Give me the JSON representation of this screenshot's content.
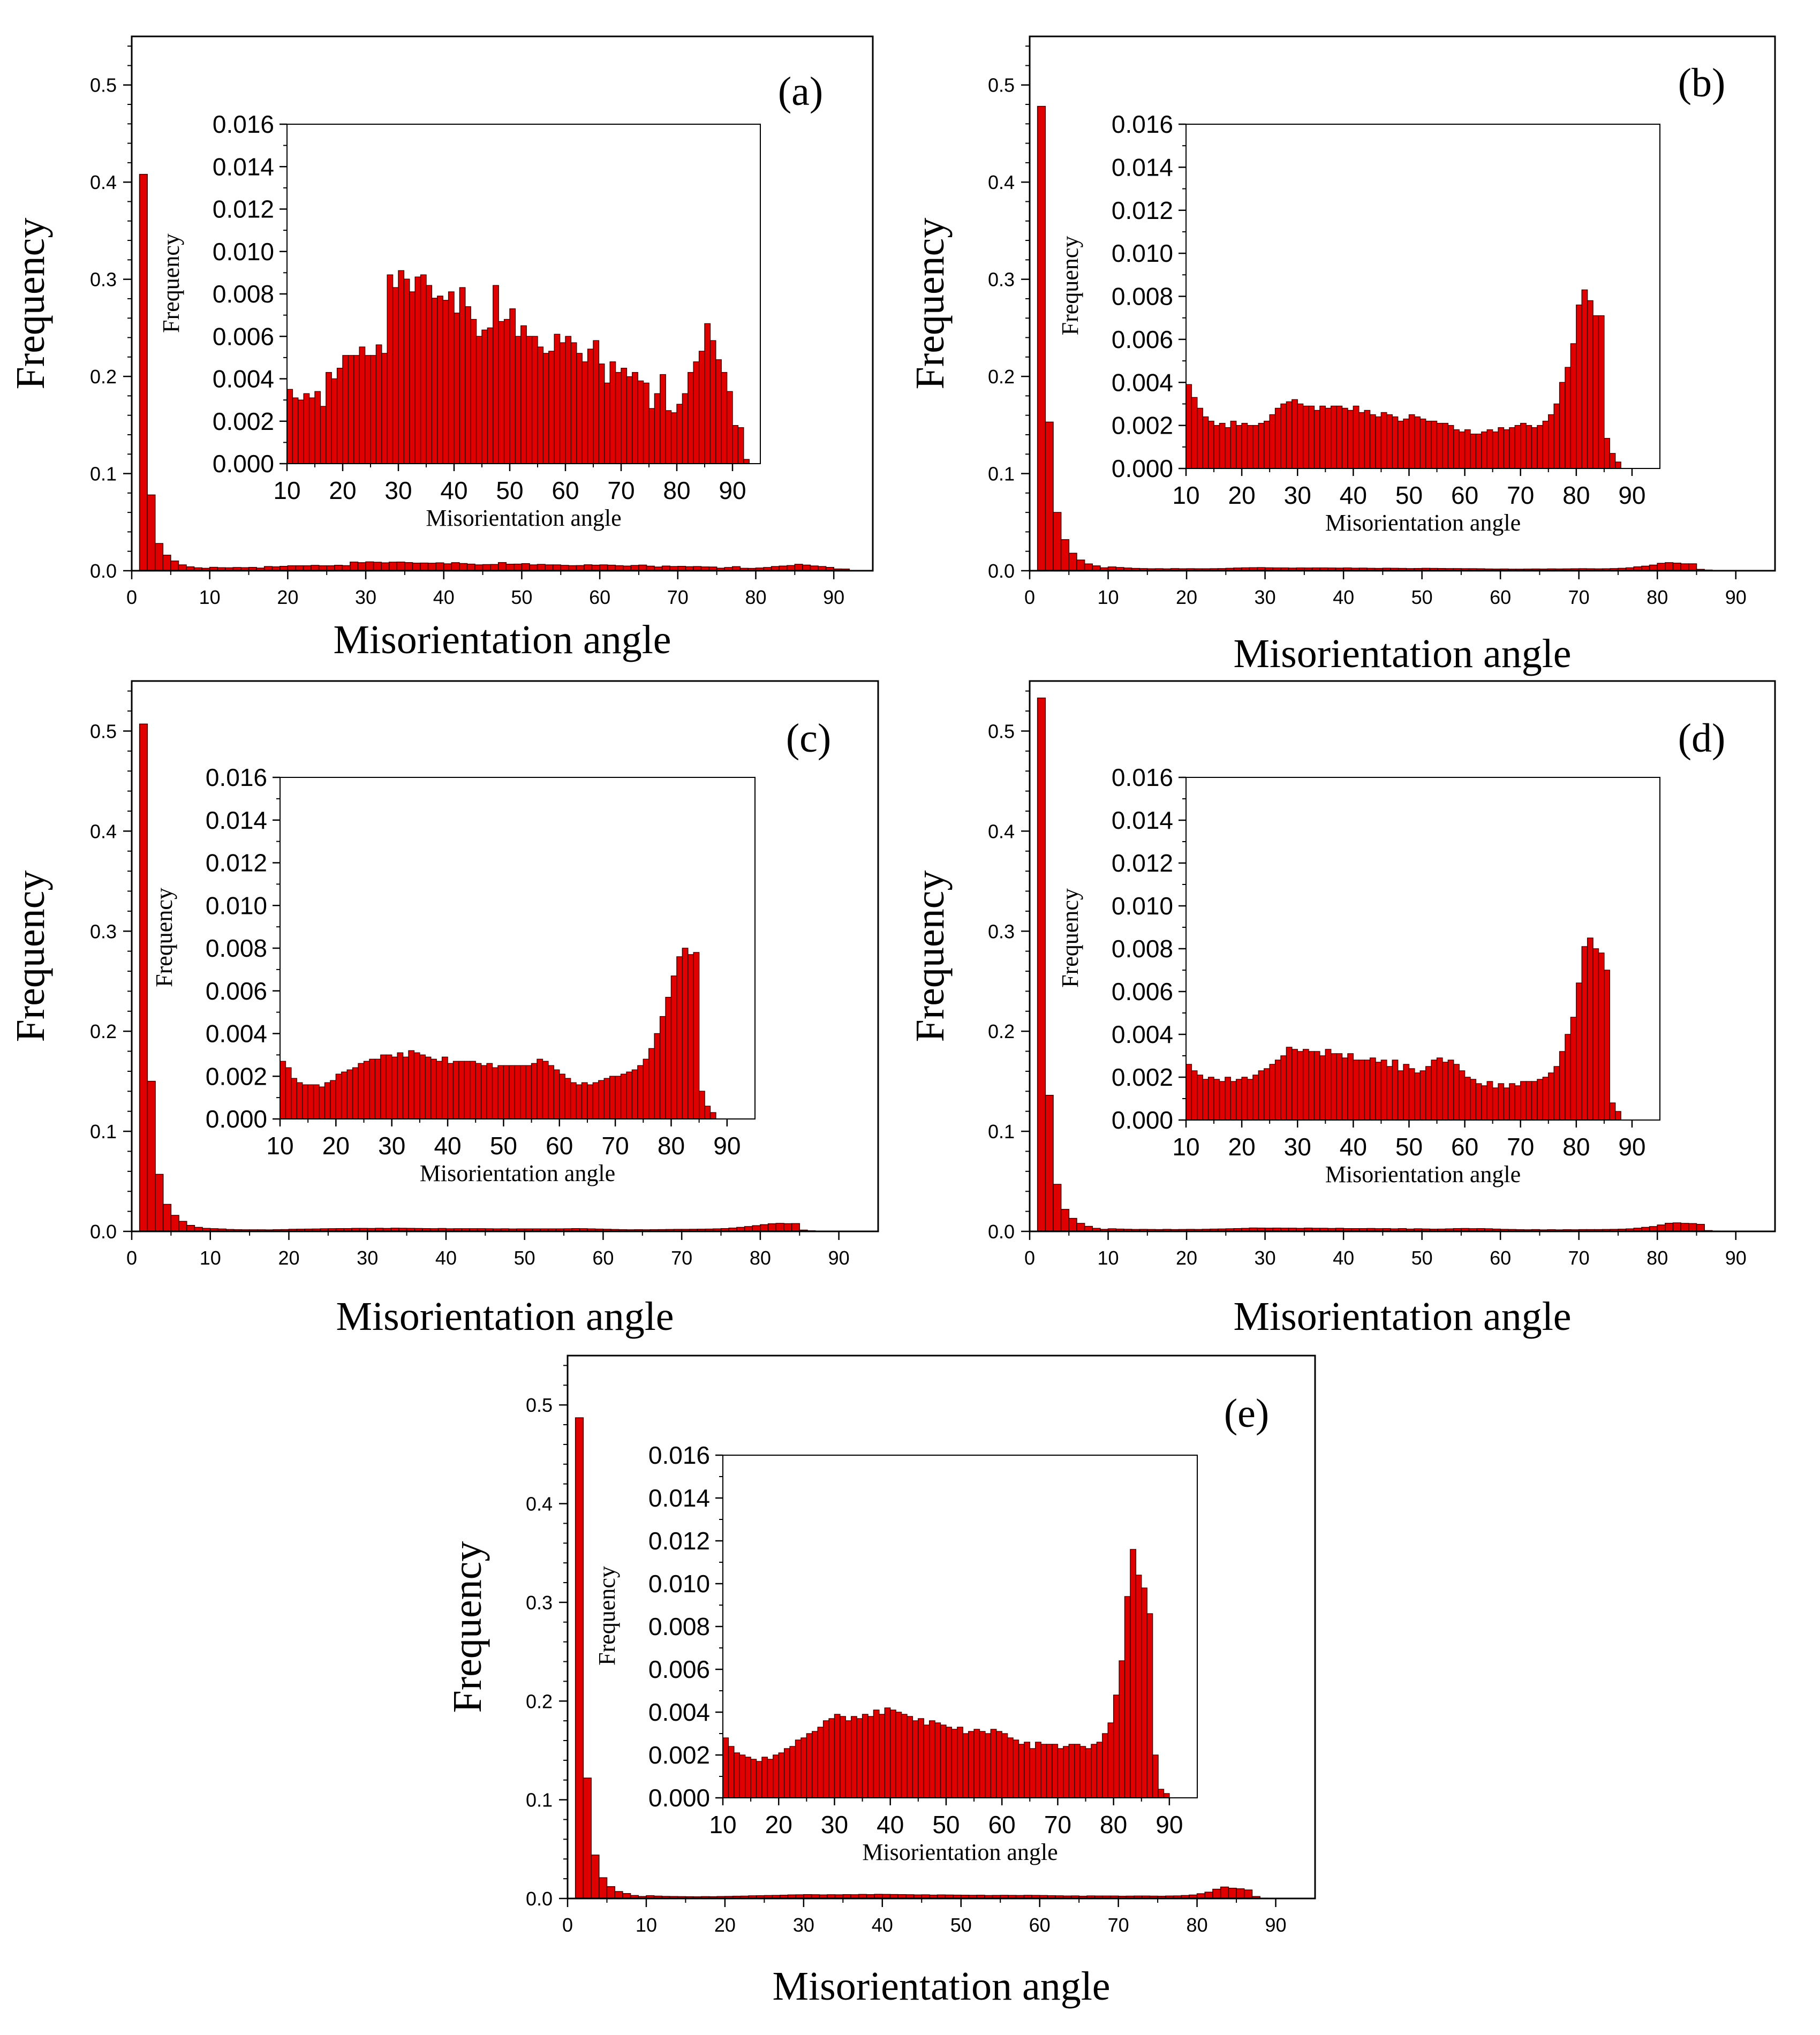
{
  "colors": {
    "bar_fill": "#e00000",
    "bar_stroke": "#3a0000",
    "axis": "#000000",
    "background": "#ffffff"
  },
  "chart_data": [
    {
      "panel": "(a)",
      "type": "bar",
      "xlabel": "Misorientation angle",
      "ylabel": "Frequency",
      "xlim": [
        0,
        95
      ],
      "ylim": [
        0,
        0.55
      ],
      "xticks": [
        "0",
        "10",
        "20",
        "30",
        "40",
        "50",
        "60",
        "70",
        "80",
        "90"
      ],
      "yticks": [
        "0.0",
        "0.1",
        "0.2",
        "0.3",
        "0.4",
        "0.5"
      ],
      "bin_width": 1,
      "bin_start": 1,
      "values": [
        0.408,
        0.078,
        0.028,
        0.016,
        0.01,
        0.006,
        0.004,
        0.003,
        0.0025,
        0.0035,
        0.0031,
        0.003,
        0.0033,
        0.0031,
        0.0034,
        0.0027,
        0.0043,
        0.004,
        0.0045,
        0.0051,
        0.0051,
        0.0051,
        0.0055,
        0.0051,
        0.0051,
        0.0056,
        0.0052,
        0.0089,
        0.0083,
        0.0091,
        0.0087,
        0.0081,
        0.0088,
        0.0089,
        0.0084,
        0.0078,
        0.0079,
        0.0077,
        0.0081,
        0.0071,
        0.0083,
        0.0074,
        0.0068,
        0.006,
        0.0063,
        0.0064,
        0.0084,
        0.0067,
        0.0068,
        0.0073,
        0.006,
        0.0065,
        0.006,
        0.006,
        0.0055,
        0.0052,
        0.0053,
        0.0061,
        0.0057,
        0.006,
        0.0057,
        0.0052,
        0.0048,
        0.0054,
        0.0058,
        0.0047,
        0.0038,
        0.0048,
        0.0043,
        0.0045,
        0.0041,
        0.0043,
        0.0039,
        0.0038,
        0.0026,
        0.0033,
        0.0042,
        0.0025,
        0.0024,
        0.0028,
        0.0033,
        0.0043,
        0.0048,
        0.0053,
        0.0066,
        0.0058,
        0.0049,
        0.0043,
        0.0034,
        0.0018,
        0.0017,
        0.0002
      ],
      "inset": {
        "xlabel": "Misorientation angle",
        "ylabel": "Frequency",
        "xlim": [
          10,
          95
        ],
        "ylim": [
          0,
          0.016
        ],
        "xticks": [
          "10",
          "20",
          "30",
          "40",
          "50",
          "60",
          "70",
          "80",
          "90"
        ],
        "yticks": [
          "0.000",
          "0.002",
          "0.004",
          "0.006",
          "0.008",
          "0.010",
          "0.012",
          "0.014",
          "0.016"
        ]
      }
    },
    {
      "panel": "(b)",
      "type": "bar",
      "xlabel": "Misorientation angle",
      "ylabel": "Frequency",
      "xlim": [
        0,
        95
      ],
      "ylim": [
        0,
        0.55
      ],
      "xticks": [
        "0",
        "10",
        "20",
        "30",
        "40",
        "50",
        "60",
        "70",
        "80",
        "90"
      ],
      "yticks": [
        "0.0",
        "0.1",
        "0.2",
        "0.3",
        "0.4",
        "0.5"
      ],
      "bin_width": 1,
      "bin_start": 1,
      "values": [
        0.478,
        0.153,
        0.06,
        0.032,
        0.018,
        0.011,
        0.007,
        0.005,
        0.003,
        0.0039,
        0.0033,
        0.0028,
        0.0024,
        0.0022,
        0.002,
        0.0021,
        0.0019,
        0.0022,
        0.002,
        0.0021,
        0.002,
        0.002,
        0.0021,
        0.0022,
        0.0025,
        0.0028,
        0.003,
        0.0031,
        0.0032,
        0.003,
        0.0029,
        0.0029,
        0.0027,
        0.0029,
        0.0028,
        0.0029,
        0.0029,
        0.0028,
        0.0027,
        0.0029,
        0.0026,
        0.0027,
        0.0025,
        0.0024,
        0.0026,
        0.0025,
        0.0024,
        0.0022,
        0.0023,
        0.0025,
        0.0024,
        0.0023,
        0.0022,
        0.0022,
        0.0021,
        0.0021,
        0.002,
        0.0018,
        0.0017,
        0.0018,
        0.0016,
        0.0016,
        0.0017,
        0.0018,
        0.0017,
        0.0019,
        0.0018,
        0.0019,
        0.002,
        0.0021,
        0.002,
        0.0019,
        0.002,
        0.0022,
        0.0025,
        0.003,
        0.004,
        0.0047,
        0.0058,
        0.0076,
        0.0083,
        0.0078,
        0.0071,
        0.0071,
        0.0014,
        0.0007,
        0.0003
      ],
      "inset": {
        "xlabel": "Misorientation angle",
        "ylabel": "Frequency",
        "xlim": [
          10,
          95
        ],
        "ylim": [
          0,
          0.016
        ],
        "xticks": [
          "10",
          "20",
          "30",
          "40",
          "50",
          "60",
          "70",
          "80",
          "90"
        ],
        "yticks": [
          "0.000",
          "0.002",
          "0.004",
          "0.006",
          "0.008",
          "0.010",
          "0.012",
          "0.014",
          "0.016"
        ]
      }
    },
    {
      "panel": "(c)",
      "type": "bar",
      "xlabel": "Misorientation angle",
      "ylabel": "Frequency",
      "xlim": [
        0,
        95
      ],
      "ylim": [
        0,
        0.55
      ],
      "xticks": [
        "0",
        "10",
        "20",
        "30",
        "40",
        "50",
        "60",
        "70",
        "80",
        "90"
      ],
      "yticks": [
        "0.0",
        "0.1",
        "0.2",
        "0.3",
        "0.4",
        "0.5"
      ],
      "bin_width": 1,
      "bin_start": 1,
      "values": [
        0.507,
        0.15,
        0.057,
        0.027,
        0.016,
        0.01,
        0.006,
        0.004,
        0.003,
        0.0027,
        0.0024,
        0.0019,
        0.0017,
        0.0016,
        0.0016,
        0.0016,
        0.0015,
        0.0017,
        0.0018,
        0.0021,
        0.0022,
        0.0023,
        0.0024,
        0.0026,
        0.0027,
        0.0028,
        0.0028,
        0.003,
        0.003,
        0.0029,
        0.0031,
        0.0029,
        0.0032,
        0.0031,
        0.003,
        0.0029,
        0.0028,
        0.0027,
        0.0029,
        0.0026,
        0.0027,
        0.0027,
        0.0027,
        0.0027,
        0.0026,
        0.0025,
        0.0026,
        0.0024,
        0.0025,
        0.0025,
        0.0025,
        0.0025,
        0.0025,
        0.0025,
        0.0026,
        0.0028,
        0.0027,
        0.0025,
        0.0023,
        0.0021,
        0.0019,
        0.0017,
        0.0016,
        0.0017,
        0.0016,
        0.0017,
        0.0018,
        0.0019,
        0.002,
        0.002,
        0.0021,
        0.0022,
        0.0023,
        0.0025,
        0.0028,
        0.0033,
        0.004,
        0.0048,
        0.0057,
        0.0067,
        0.0076,
        0.008,
        0.0077,
        0.0078,
        0.0013,
        0.0006,
        0.0003
      ],
      "inset": {
        "xlabel": "Misorientation angle",
        "ylabel": "Frequency",
        "xlim": [
          10,
          95
        ],
        "ylim": [
          0,
          0.016
        ],
        "xticks": [
          "10",
          "20",
          "30",
          "40",
          "50",
          "60",
          "70",
          "80",
          "90"
        ],
        "yticks": [
          "0.000",
          "0.002",
          "0.004",
          "0.006",
          "0.008",
          "0.010",
          "0.012",
          "0.014",
          "0.016"
        ]
      }
    },
    {
      "panel": "(d)",
      "type": "bar",
      "xlabel": "Misorientation angle",
      "ylabel": "Frequency",
      "xlim": [
        0,
        95
      ],
      "ylim": [
        0,
        0.55
      ],
      "xticks": [
        "0",
        "10",
        "20",
        "30",
        "40",
        "50",
        "60",
        "70",
        "80",
        "90"
      ],
      "yticks": [
        "0.0",
        "0.1",
        "0.2",
        "0.3",
        "0.4",
        "0.5"
      ],
      "bin_width": 1,
      "bin_start": 1,
      "values": [
        0.533,
        0.136,
        0.047,
        0.022,
        0.013,
        0.008,
        0.005,
        0.003,
        0.002,
        0.0026,
        0.0023,
        0.0021,
        0.0019,
        0.002,
        0.0019,
        0.0018,
        0.002,
        0.0018,
        0.0019,
        0.002,
        0.0019,
        0.0021,
        0.0023,
        0.0024,
        0.0026,
        0.0028,
        0.003,
        0.0034,
        0.0033,
        0.0032,
        0.0033,
        0.0032,
        0.0032,
        0.003,
        0.0033,
        0.0031,
        0.0031,
        0.0029,
        0.0031,
        0.0028,
        0.0028,
        0.0028,
        0.0029,
        0.0027,
        0.0028,
        0.0025,
        0.0028,
        0.0023,
        0.0026,
        0.0024,
        0.0022,
        0.0023,
        0.0025,
        0.0028,
        0.0029,
        0.0027,
        0.0028,
        0.0026,
        0.0023,
        0.002,
        0.0019,
        0.0017,
        0.0016,
        0.0018,
        0.0015,
        0.0017,
        0.0015,
        0.0017,
        0.0016,
        0.0018,
        0.0018,
        0.0018,
        0.0019,
        0.002,
        0.0022,
        0.0025,
        0.0032,
        0.004,
        0.0048,
        0.0064,
        0.0081,
        0.0085,
        0.008,
        0.0078,
        0.007,
        0.0008,
        0.0004
      ],
      "inset": {
        "xlabel": "Misorientation angle",
        "ylabel": "Frequency",
        "xlim": [
          10,
          95
        ],
        "ylim": [
          0,
          0.016
        ],
        "xticks": [
          "10",
          "20",
          "30",
          "40",
          "50",
          "60",
          "70",
          "80",
          "90"
        ],
        "yticks": [
          "0.000",
          "0.002",
          "0.004",
          "0.006",
          "0.008",
          "0.010",
          "0.012",
          "0.014",
          "0.016"
        ]
      }
    },
    {
      "panel": "(e)",
      "type": "bar",
      "xlabel": "Misorientation angle",
      "ylabel": "Frequency",
      "xlim": [
        0,
        95
      ],
      "ylim": [
        0,
        0.55
      ],
      "xticks": [
        "0",
        "10",
        "20",
        "30",
        "40",
        "50",
        "60",
        "70",
        "80",
        "90"
      ],
      "yticks": [
        "0.0",
        "0.1",
        "0.2",
        "0.3",
        "0.4",
        "0.5"
      ],
      "bin_width": 1,
      "bin_start": 1,
      "values": [
        0.487,
        0.122,
        0.044,
        0.021,
        0.012,
        0.007,
        0.005,
        0.003,
        0.002,
        0.0028,
        0.0024,
        0.0021,
        0.002,
        0.0019,
        0.0018,
        0.0017,
        0.0019,
        0.0018,
        0.002,
        0.0021,
        0.0023,
        0.0024,
        0.0027,
        0.0028,
        0.003,
        0.0031,
        0.0033,
        0.0036,
        0.0037,
        0.0039,
        0.0038,
        0.0036,
        0.0038,
        0.0037,
        0.0039,
        0.0038,
        0.0041,
        0.0039,
        0.0042,
        0.0041,
        0.004,
        0.0039,
        0.0038,
        0.0036,
        0.0037,
        0.0034,
        0.0036,
        0.0035,
        0.0034,
        0.0033,
        0.0032,
        0.0033,
        0.003,
        0.0031,
        0.0032,
        0.0031,
        0.003,
        0.0032,
        0.0031,
        0.003,
        0.0028,
        0.0027,
        0.0025,
        0.0026,
        0.0023,
        0.0026,
        0.0025,
        0.0025,
        0.0025,
        0.0023,
        0.0024,
        0.0025,
        0.0025,
        0.0024,
        0.0023,
        0.0025,
        0.0026,
        0.003,
        0.0035,
        0.0048,
        0.0064,
        0.0094,
        0.0116,
        0.0104,
        0.0098,
        0.0086,
        0.002,
        0.0004,
        0.0002
      ],
      "inset": {
        "xlabel": "Misorientation angle",
        "ylabel": "Frequency",
        "xlim": [
          10,
          95
        ],
        "ylim": [
          0,
          0.016
        ],
        "xticks": [
          "10",
          "20",
          "30",
          "40",
          "50",
          "60",
          "70",
          "80",
          "90"
        ],
        "yticks": [
          "0.000",
          "0.002",
          "0.004",
          "0.006",
          "0.008",
          "0.010",
          "0.012",
          "0.014",
          "0.016"
        ]
      }
    }
  ]
}
